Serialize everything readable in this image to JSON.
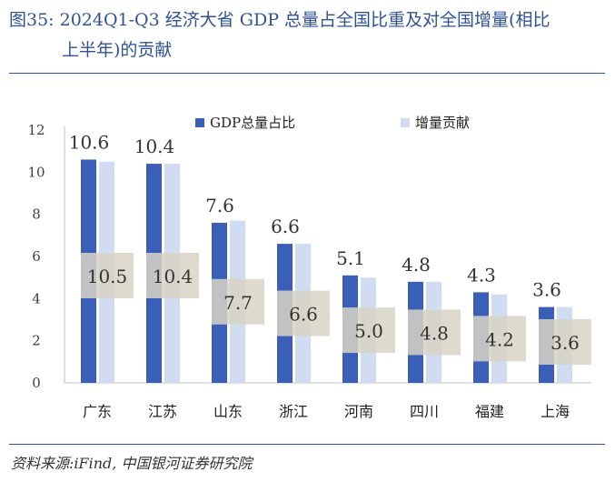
{
  "title": {
    "line1": "图35:  2024Q1-Q3 经济大省 GDP 总量占全国比重及对全国增量(相比",
    "line2": "上半年)的贡献"
  },
  "source": "资料来源:iFind, 中国银河证券研究院",
  "colors": {
    "series1": "#3a5fb8",
    "series2": "#cfdcf2",
    "label_box": "#d8d4c4"
  },
  "chart_data": {
    "type": "bar",
    "categories": [
      "广东",
      "江苏",
      "山东",
      "浙江",
      "河南",
      "四川",
      "福建",
      "上海"
    ],
    "series": [
      {
        "name": "GDP总量占比",
        "values": [
          10.6,
          10.4,
          7.6,
          6.6,
          5.1,
          4.8,
          4.3,
          3.6
        ],
        "labels": [
          "10.6",
          "10.4",
          "7.6",
          "6.6",
          "5.1",
          "4.8",
          "4.3",
          "3.6"
        ]
      },
      {
        "name": "增量贡献",
        "values": [
          10.5,
          10.4,
          7.7,
          6.6,
          5.0,
          4.8,
          4.2,
          3.6
        ],
        "labels": [
          "10.5",
          "10.4",
          "7.7",
          "6.6",
          "5.0",
          "4.8",
          "4.2",
          "3.6"
        ]
      }
    ],
    "ylim": [
      0,
      12
    ],
    "yticks": [
      "0",
      "2",
      "4",
      "6",
      "8",
      "10",
      "12"
    ],
    "legend_position": "top-center",
    "grid": false
  }
}
